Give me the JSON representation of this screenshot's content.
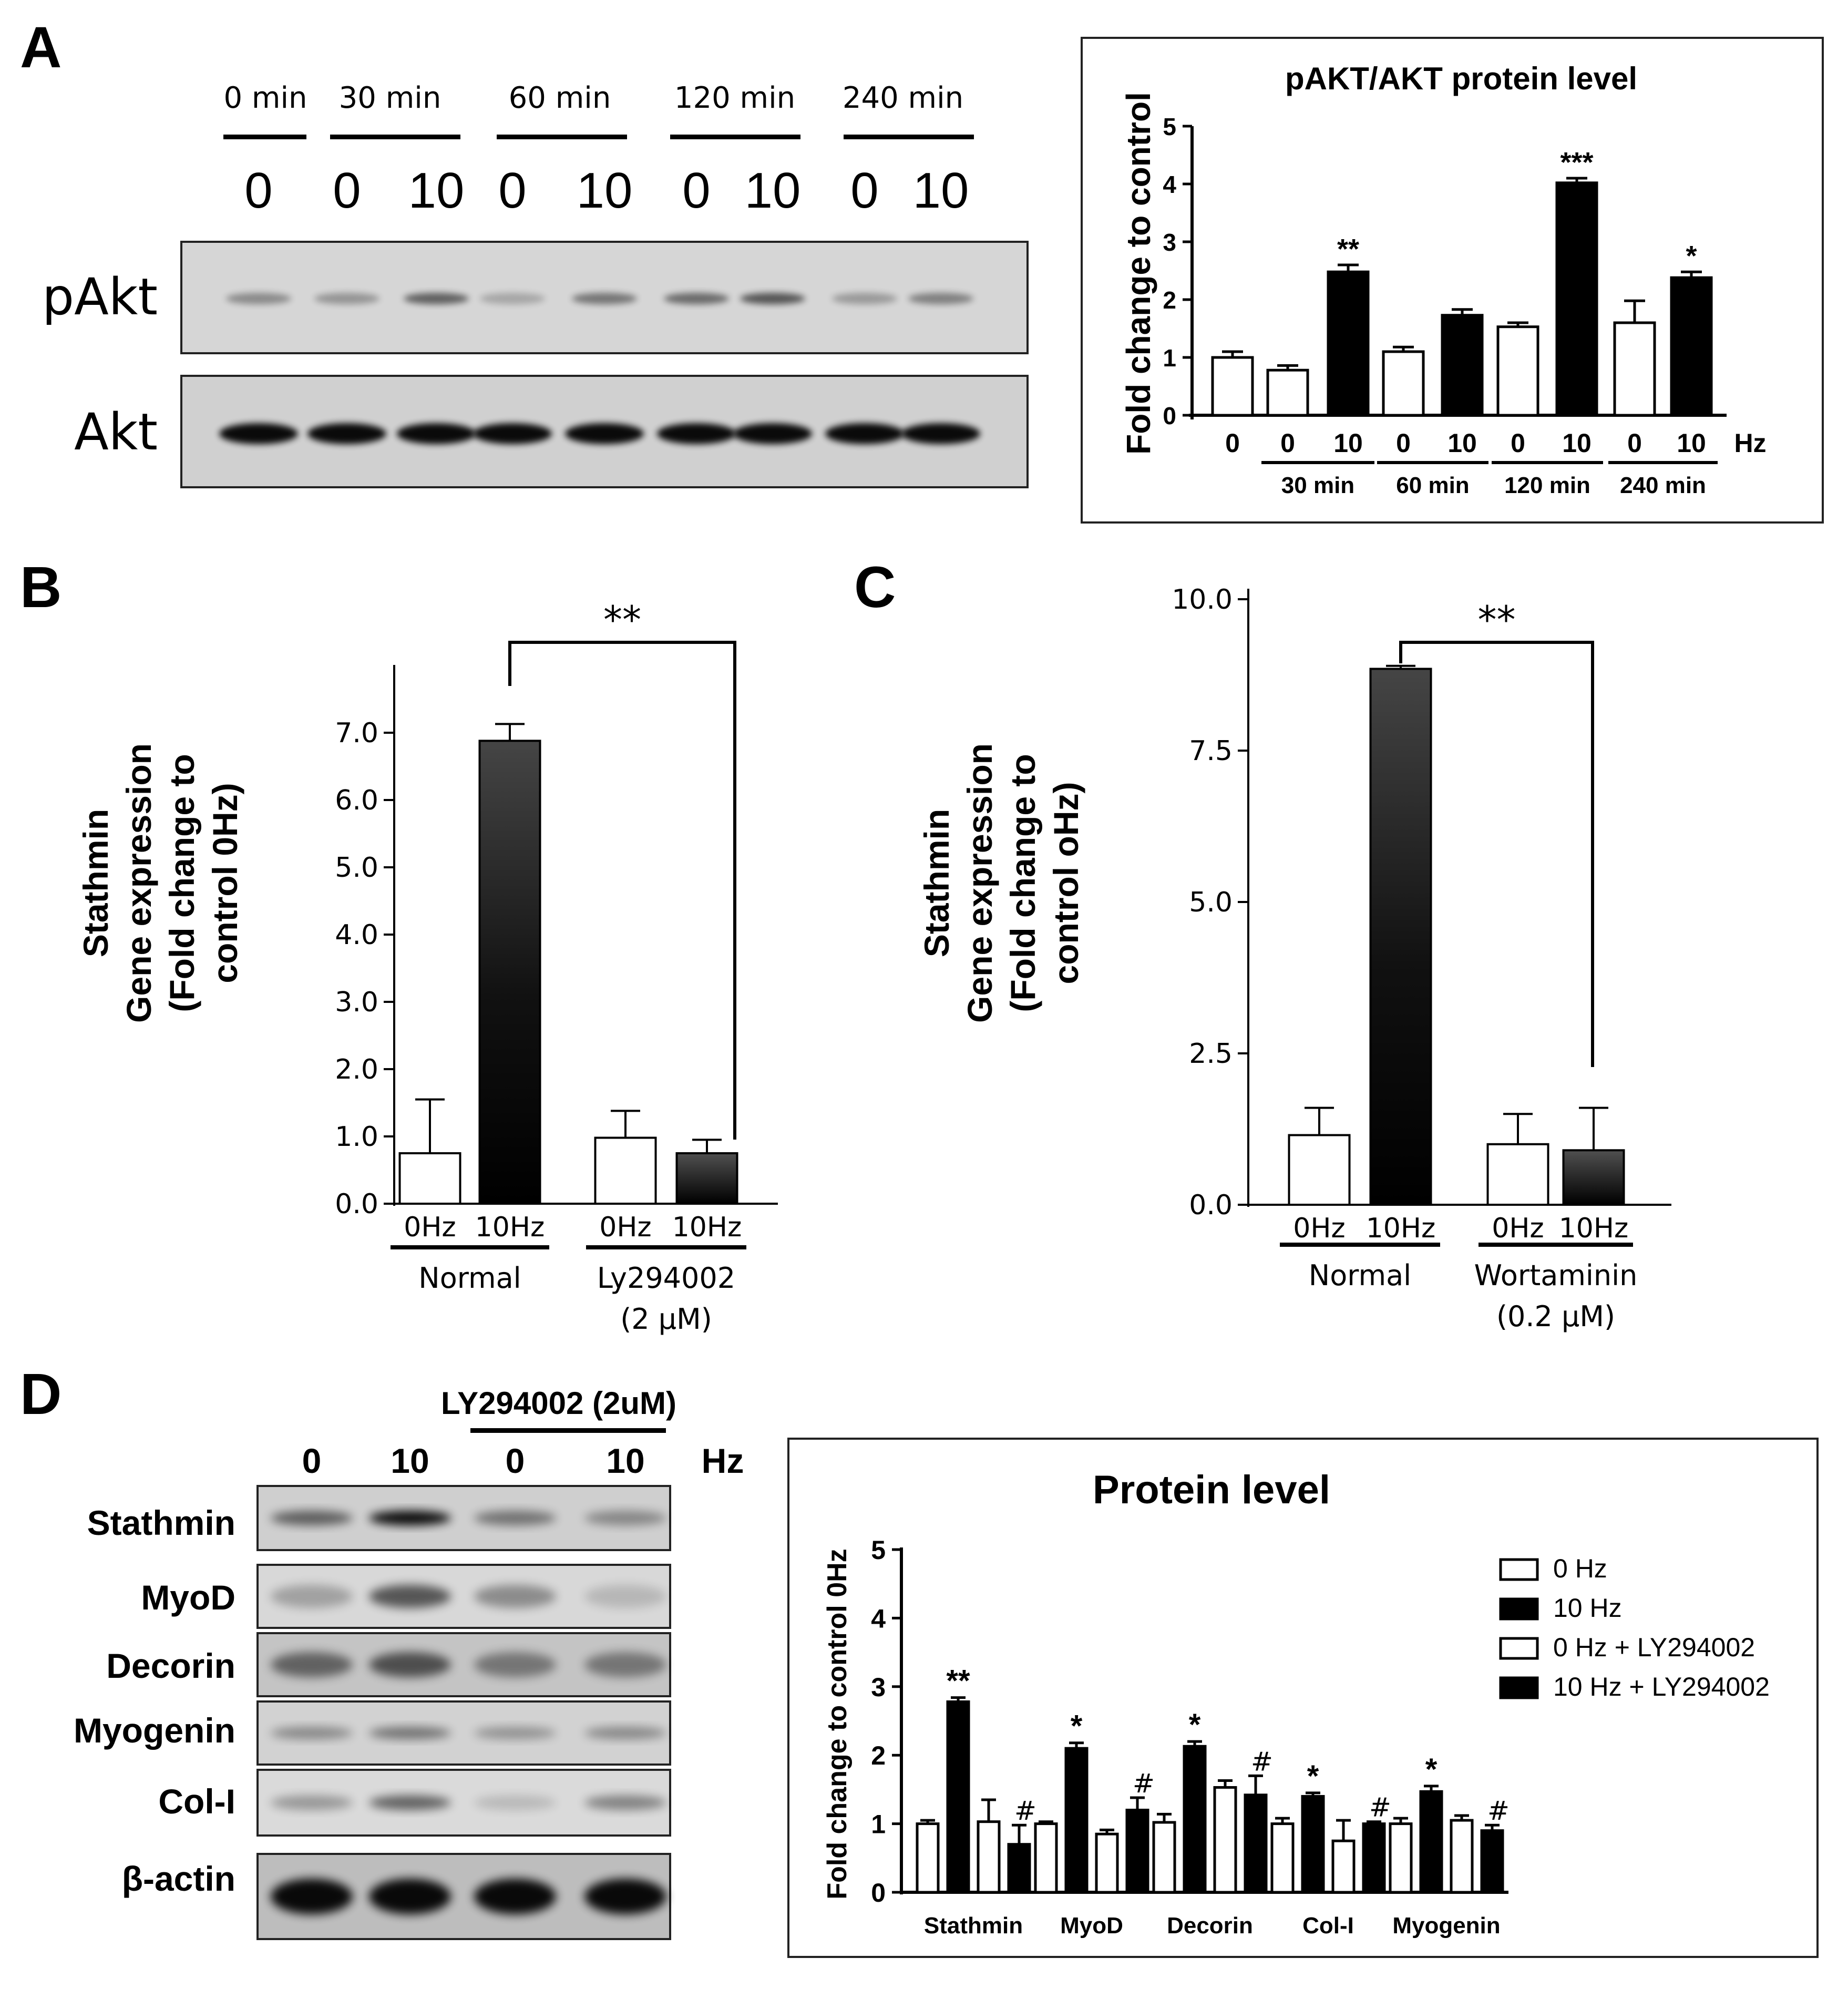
{
  "panel_labels": {
    "A": "A",
    "B": "B",
    "C": "C",
    "D": "D"
  },
  "blotA": {
    "time_labels": [
      "0 min",
      "30 min",
      "60 min",
      "120 min",
      "240 min"
    ],
    "lane_hz": [
      "0",
      "0",
      "10",
      "0",
      "10",
      "0",
      "10",
      "0",
      "10"
    ],
    "row_labels": [
      "pAkt",
      "Akt"
    ]
  },
  "blotD": {
    "inhibitor_label": "LY294002 (2uM)",
    "lane_hz": [
      "0",
      "10",
      "0",
      "10"
    ],
    "hz_unit": "Hz",
    "row_labels": [
      "Stathmin",
      "MyoD",
      "Decorin",
      "Myogenin",
      "Col-I",
      "β-actin"
    ]
  },
  "chart_data": [
    {
      "id": "A",
      "type": "bar",
      "title": "pAKT/AKT protein level",
      "ylabel": "Fold change to control",
      "ylim": [
        0,
        5
      ],
      "yticks": [
        0,
        1,
        2,
        3,
        4,
        5
      ],
      "hz_unit": "Hz",
      "bars": [
        {
          "hz": "0",
          "value": 1.0,
          "err": 0.1,
          "fill": "open",
          "sig": ""
        },
        {
          "hz": "0",
          "value": 0.78,
          "err": 0.08,
          "fill": "filled_open",
          "sig": ""
        },
        {
          "hz": "10",
          "value": 2.48,
          "err": 0.12,
          "fill": "filled",
          "sig": "**"
        },
        {
          "hz": "0",
          "value": 1.1,
          "err": 0.08,
          "fill": "open",
          "sig": ""
        },
        {
          "hz": "10",
          "value": 1.73,
          "err": 0.1,
          "fill": "filled",
          "sig": ""
        },
        {
          "hz": "0",
          "value": 1.53,
          "err": 0.07,
          "fill": "open",
          "sig": ""
        },
        {
          "hz": "10",
          "value": 4.02,
          "err": 0.08,
          "fill": "filled",
          "sig": "***"
        },
        {
          "hz": "0",
          "value": 1.6,
          "err": 0.38,
          "fill": "open",
          "sig": ""
        },
        {
          "hz": "10",
          "value": 2.38,
          "err": 0.1,
          "fill": "filled",
          "sig": "*"
        }
      ],
      "groups": [
        "30 min",
        "60 min",
        "120 min",
        "240 min"
      ]
    },
    {
      "id": "B",
      "type": "bar",
      "ylabel_lines": [
        "Stathmin",
        "Gene expression",
        "(Fold change to",
        "control 0Hz)"
      ],
      "ylim": [
        0,
        7.5
      ],
      "yticks": [
        "0.0",
        "1.0",
        "2.0",
        "3.0",
        "4.0",
        "5.0",
        "6.0",
        "7.0"
      ],
      "bars": [
        {
          "label": "0Hz",
          "value": 0.75,
          "err": 0.8,
          "fill": "open"
        },
        {
          "label": "10Hz",
          "value": 6.88,
          "err": 0.25,
          "fill": "gradient"
        },
        {
          "label": "0Hz",
          "value": 0.98,
          "err": 0.4,
          "fill": "open"
        },
        {
          "label": "10Hz",
          "value": 0.75,
          "err": 0.2,
          "fill": "gradient"
        }
      ],
      "groups": [
        {
          "name": "Normal"
        },
        {
          "name": "Ly294002",
          "name2": "(2 μM)"
        }
      ],
      "sig": "**"
    },
    {
      "id": "C",
      "type": "bar",
      "ylabel_lines": [
        "Stathmin",
        "Gene expression",
        "(Fold change to",
        "control oHz)"
      ],
      "ylim": [
        0,
        10
      ],
      "yticks": [
        "0.0",
        "2.5",
        "5.0",
        "7.5",
        "10.0"
      ],
      "bars": [
        {
          "label": "0Hz",
          "value": 1.15,
          "err": 0.45,
          "fill": "open"
        },
        {
          "label": "10Hz",
          "value": 8.85,
          "err": 0.05,
          "fill": "gradient"
        },
        {
          "label": "0Hz",
          "value": 1.0,
          "err": 0.5,
          "fill": "open"
        },
        {
          "label": "10Hz",
          "value": 0.9,
          "err": 0.7,
          "fill": "gradient"
        }
      ],
      "groups": [
        {
          "name": "Normal"
        },
        {
          "name": "Wortaminin",
          "name2": "(0.2 μM)"
        }
      ],
      "sig": "**"
    },
    {
      "id": "D",
      "type": "bar",
      "title": "Protein level",
      "ylabel": "Fold change to control 0Hz",
      "ylim": [
        0,
        5
      ],
      "yticks": [
        0,
        1,
        2,
        3,
        4,
        5
      ],
      "categories": [
        "Stathmin",
        "MyoD",
        "Decorin",
        "Col-I",
        "Myogenin"
      ],
      "legend": [
        "0 Hz",
        "10 Hz",
        "0 Hz + LY294002",
        "10 Hz + LY294002"
      ],
      "series": [
        {
          "values": [
            1.0,
            1.0,
            1.02,
            1.0,
            1.0
          ],
          "err": [
            0.05,
            0.03,
            0.12,
            0.08,
            0.08
          ]
        },
        {
          "values": [
            2.78,
            2.1,
            2.13,
            1.4,
            1.47
          ],
          "err": [
            0.06,
            0.08,
            0.07,
            0.05,
            0.08
          ]
        },
        {
          "values": [
            1.03,
            0.85,
            1.53,
            0.75,
            1.05
          ],
          "err": [
            0.32,
            0.06,
            0.1,
            0.3,
            0.07
          ]
        },
        {
          "values": [
            0.7,
            1.2,
            1.42,
            1.0,
            0.9
          ],
          "err": [
            0.28,
            0.18,
            0.28,
            0.03,
            0.08
          ]
        }
      ],
      "sig_10hz": [
        "**",
        "*",
        "*",
        "*",
        "*"
      ],
      "sig_10hz_ly": [
        "#",
        "#",
        "#",
        "#",
        "#"
      ]
    }
  ]
}
